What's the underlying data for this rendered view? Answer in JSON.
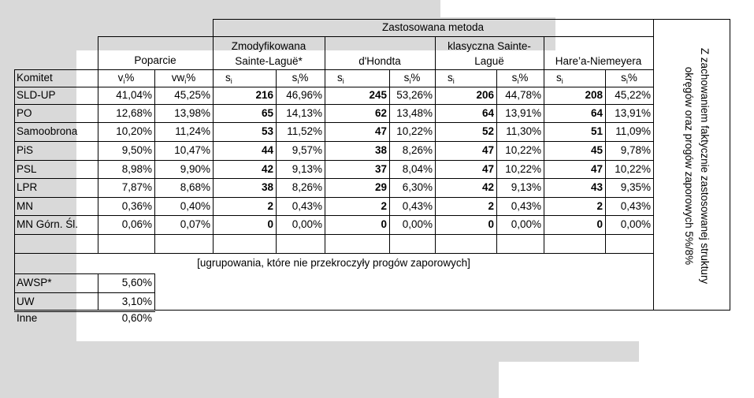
{
  "header": {
    "method_title": "Zastosowana metoda",
    "poparcie": "Poparcie",
    "methods": [
      {
        "line1": "Zmodyfikowana",
        "line2": "Sainte-Laguë*"
      },
      {
        "line1": "",
        "line2": "d'Hondta"
      },
      {
        "line1": "klasyczna Sainte-",
        "line2": "Laguë"
      },
      {
        "line1": "",
        "line2": "Hare’a-Niemeyera"
      }
    ],
    "side_note_line1": "Z zachowaniem faktycznie zastosowanej struktury",
    "side_note_line2": "okręgów oraz progów zaporowych 5%/8%"
  },
  "columns": {
    "komitet": "Komitet",
    "v_main": "v",
    "v_sub": "i",
    "v_tail": "%",
    "vw_main": "vw",
    "vw_sub": "i",
    "vw_tail": "%",
    "s_main": "s",
    "s_sub": "i",
    "sp_main": "s",
    "sp_sub": "i",
    "sp_tail": "%"
  },
  "rows": [
    {
      "name": "SLD-UP",
      "v": "41,04%",
      "vw": "45,25%",
      "m": [
        [
          "216",
          "46,96%"
        ],
        [
          "245",
          "53,26%"
        ],
        [
          "206",
          "44,78%"
        ],
        [
          "208",
          "45,22%"
        ]
      ]
    },
    {
      "name": "PO",
      "v": "12,68%",
      "vw": "13,98%",
      "m": [
        [
          "65",
          "14,13%"
        ],
        [
          "62",
          "13,48%"
        ],
        [
          "64",
          "13,91%"
        ],
        [
          "64",
          "13,91%"
        ]
      ]
    },
    {
      "name": "Samoobrona",
      "v": "10,20%",
      "vw": "11,24%",
      "m": [
        [
          "53",
          "11,52%"
        ],
        [
          "47",
          "10,22%"
        ],
        [
          "52",
          "11,30%"
        ],
        [
          "51",
          "11,09%"
        ]
      ]
    },
    {
      "name": "PiS",
      "v": "9,50%",
      "vw": "10,47%",
      "m": [
        [
          "44",
          "9,57%"
        ],
        [
          "38",
          "8,26%"
        ],
        [
          "47",
          "10,22%"
        ],
        [
          "45",
          "9,78%"
        ]
      ]
    },
    {
      "name": "PSL",
      "v": "8,98%",
      "vw": "9,90%",
      "m": [
        [
          "42",
          "9,13%"
        ],
        [
          "37",
          "8,04%"
        ],
        [
          "47",
          "10,22%"
        ],
        [
          "47",
          "10,22%"
        ]
      ]
    },
    {
      "name": "LPR",
      "v": "7,87%",
      "vw": "8,68%",
      "m": [
        [
          "38",
          "8,26%"
        ],
        [
          "29",
          "6,30%"
        ],
        [
          "42",
          "9,13%"
        ],
        [
          "43",
          "9,35%"
        ]
      ]
    },
    {
      "name": "MN",
      "v": "0,36%",
      "vw": "0,40%",
      "m": [
        [
          "2",
          "0,43%"
        ],
        [
          "2",
          "0,43%"
        ],
        [
          "2",
          "0,43%"
        ],
        [
          "2",
          "0,43%"
        ]
      ]
    },
    {
      "name": "MN Górn. Śl.",
      "v": "0,06%",
      "vw": "0,07%",
      "m": [
        [
          "0",
          "0,00%"
        ],
        [
          "0",
          "0,00%"
        ],
        [
          "0",
          "0,00%"
        ],
        [
          "0",
          "0,00%"
        ]
      ]
    }
  ],
  "below_threshold_label": "[ugrupowania, które nie przekroczyły progów zaporowych]",
  "below_rows": [
    {
      "name": "AWSP*",
      "v": "5,60%"
    },
    {
      "name": "UW",
      "v": "3,10%"
    },
    {
      "name": "Inne",
      "v": "0,60%"
    }
  ],
  "colors": {
    "grey": "#d9d9d9",
    "line": "#000000"
  }
}
